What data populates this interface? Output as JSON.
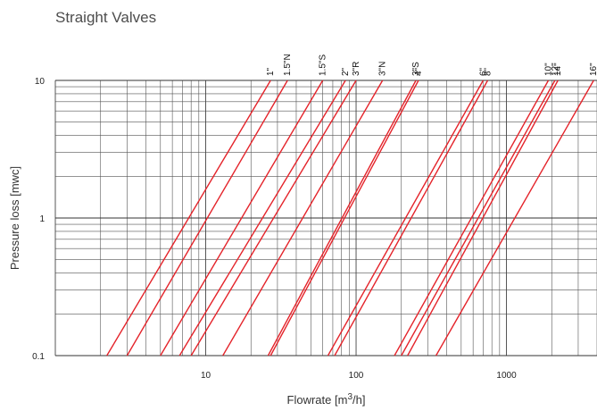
{
  "page": {
    "title": "Straight Valves"
  },
  "chart_data": {
    "type": "line",
    "title": "Straight Valves",
    "xlabel": "Flowrate [m3/h]",
    "ylabel": "Pressure loss [mwc]",
    "x_scale": "log",
    "y_scale": "log",
    "xlim": [
      1,
      4000
    ],
    "ylim": [
      0.1,
      10
    ],
    "x_ticks": [
      10,
      100,
      1000
    ],
    "x_tick_labels": [
      "10",
      "100",
      "1000"
    ],
    "y_ticks": [
      0.1,
      1,
      10
    ],
    "y_tick_labels": [
      "0.1",
      "1",
      "10"
    ],
    "grid": true,
    "line_color": "#e4232a",
    "series": [
      {
        "name": "1\"",
        "x": [
          2.2,
          27
        ],
        "y": [
          0.1,
          10
        ]
      },
      {
        "name": "1.5\"N",
        "x": [
          3.0,
          35
        ],
        "y": [
          0.1,
          10
        ]
      },
      {
        "name": "1.5\"S",
        "x": [
          5.0,
          60
        ],
        "y": [
          0.1,
          10
        ]
      },
      {
        "name": "2\"",
        "x": [
          6.7,
          85
        ],
        "y": [
          0.1,
          10
        ]
      },
      {
        "name": "3\"R",
        "x": [
          8.0,
          100
        ],
        "y": [
          0.1,
          10
        ]
      },
      {
        "name": "3\"N",
        "x": [
          13.0,
          150
        ],
        "y": [
          0.1,
          10
        ]
      },
      {
        "name": "3\"S",
        "x": [
          26.0,
          250
        ],
        "y": [
          0.1,
          10
        ]
      },
      {
        "name": "4\"",
        "x": [
          27.0,
          260
        ],
        "y": [
          0.1,
          10
        ]
      },
      {
        "name": "6\"",
        "x": [
          65.0,
          700
        ],
        "y": [
          0.1,
          10
        ]
      },
      {
        "name": "8\"",
        "x": [
          72.0,
          750
        ],
        "y": [
          0.1,
          10
        ]
      },
      {
        "name": "10\"",
        "x": [
          180,
          1900
        ],
        "y": [
          0.1,
          10
        ]
      },
      {
        "name": "12\"",
        "x": [
          200,
          2100
        ],
        "y": [
          0.1,
          10
        ]
      },
      {
        "name": "14\"",
        "x": [
          220,
          2200
        ],
        "y": [
          0.1,
          10
        ]
      },
      {
        "name": "16\"",
        "x": [
          340,
          3800
        ],
        "y": [
          0.1,
          10
        ]
      }
    ]
  }
}
